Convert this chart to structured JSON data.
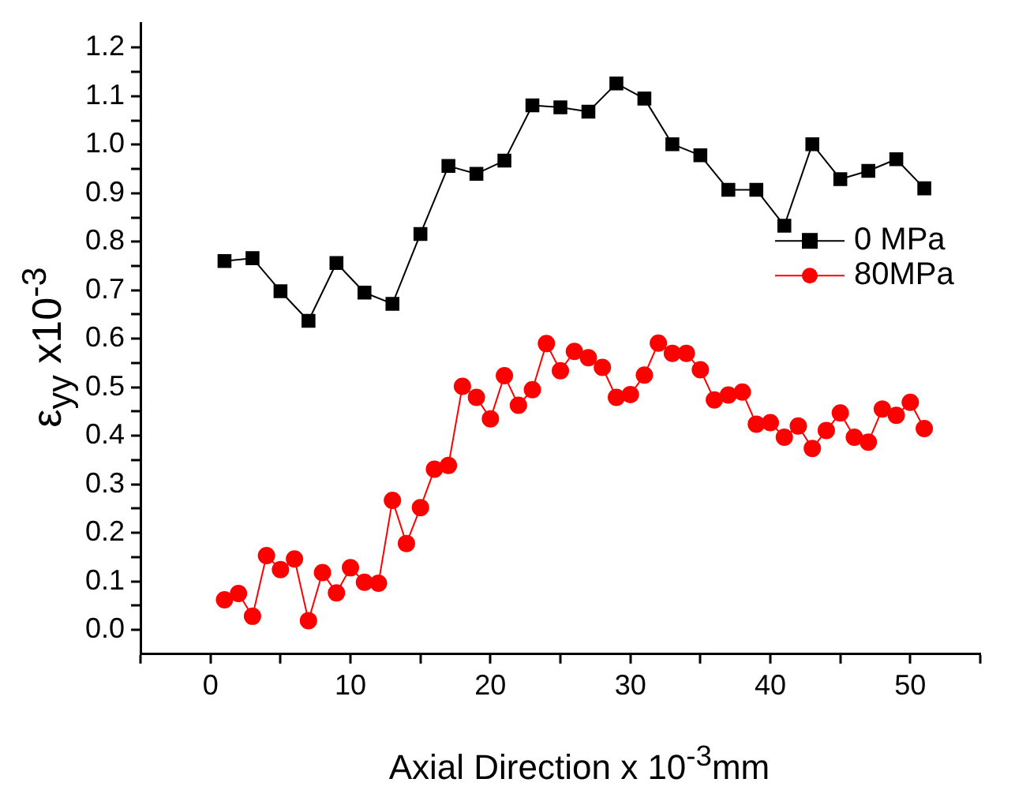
{
  "chart_data": {
    "type": "line",
    "xlabel": "Axial Direction x 10$^{-3}$mm",
    "ylabel": "ε$_{yy}$ x10$^{-3}$",
    "xlim": [
      -5,
      55
    ],
    "xticks": [
      {
        "value": -5,
        "label": null
      },
      0,
      {
        "value": 5,
        "label": null
      },
      10,
      {
        "value": 15,
        "label": null
      },
      20,
      {
        "value": 25,
        "label": null
      },
      30,
      {
        "value": 35,
        "label": null
      },
      40,
      {
        "value": 45,
        "label": null
      },
      50,
      {
        "value": 55,
        "label": null
      }
    ],
    "ylim": [
      -0.05,
      1.25
    ],
    "yticks": [
      {
        "value": 0,
        "label": "0.0"
      },
      {
        "value": 0.05,
        "label": null
      },
      0.1,
      {
        "value": 0.15,
        "label": null
      },
      0.2,
      {
        "value": 0.25,
        "label": null
      },
      0.3,
      {
        "value": 0.35,
        "label": null
      },
      0.4,
      {
        "value": 0.45,
        "label": null
      },
      0.5,
      {
        "value": 0.55,
        "label": null
      },
      0.6,
      {
        "value": 0.65,
        "label": null
      },
      0.7,
      {
        "value": 0.75,
        "label": null
      },
      0.8,
      {
        "value": 0.85,
        "label": null
      },
      0.9,
      {
        "value": 0.95,
        "label": null
      },
      {
        "value": 1,
        "label": "1.0"
      },
      {
        "value": 1.05,
        "label": null
      },
      1.1,
      {
        "value": 1.15,
        "label": null
      },
      1.2
    ],
    "grid": false,
    "legend": "right",
    "line_style": "solid",
    "series": [
      {
        "name": "0 MPa",
        "color": "#000000",
        "marker": "square",
        "x": [
          1,
          3,
          5,
          7,
          9,
          11,
          13,
          15,
          17,
          19,
          21,
          23,
          25,
          27,
          29,
          31,
          33,
          35,
          37,
          39,
          41,
          43,
          45,
          47,
          49,
          51
        ],
        "values": [
          0.76,
          0.766,
          0.698,
          0.637,
          0.756,
          0.695,
          0.672,
          0.816,
          0.956,
          0.94,
          0.967,
          1.081,
          1.077,
          1.068,
          1.126,
          1.095,
          1.001,
          0.978,
          0.907,
          0.907,
          0.833,
          1.001,
          0.929,
          0.946,
          0.97,
          0.91
        ]
      },
      {
        "name": "80MPa",
        "color": "#ff0000",
        "marker": "circle",
        "x": [
          1,
          2,
          3,
          4,
          5,
          6,
          7,
          8,
          9,
          10,
          11,
          12,
          13,
          14,
          15,
          16,
          17,
          18,
          19,
          20,
          21,
          22,
          23,
          24,
          25,
          26,
          27,
          28,
          29,
          30,
          31,
          32,
          33,
          34,
          35,
          36,
          37,
          38,
          39,
          40,
          41,
          42,
          43,
          44,
          45,
          46,
          47,
          48,
          49,
          50,
          51
        ],
        "values": [
          0.062,
          0.075,
          0.028,
          0.153,
          0.124,
          0.146,
          0.019,
          0.118,
          0.076,
          0.128,
          0.098,
          0.096,
          0.267,
          0.178,
          0.252,
          0.331,
          0.339,
          0.502,
          0.479,
          0.435,
          0.524,
          0.463,
          0.495,
          0.59,
          0.534,
          0.574,
          0.561,
          0.541,
          0.479,
          0.485,
          0.525,
          0.591,
          0.57,
          0.57,
          0.536,
          0.474,
          0.484,
          0.49,
          0.424,
          0.427,
          0.397,
          0.42,
          0.374,
          0.411,
          0.447,
          0.397,
          0.387,
          0.455,
          0.442,
          0.469,
          0.415
        ]
      }
    ]
  }
}
